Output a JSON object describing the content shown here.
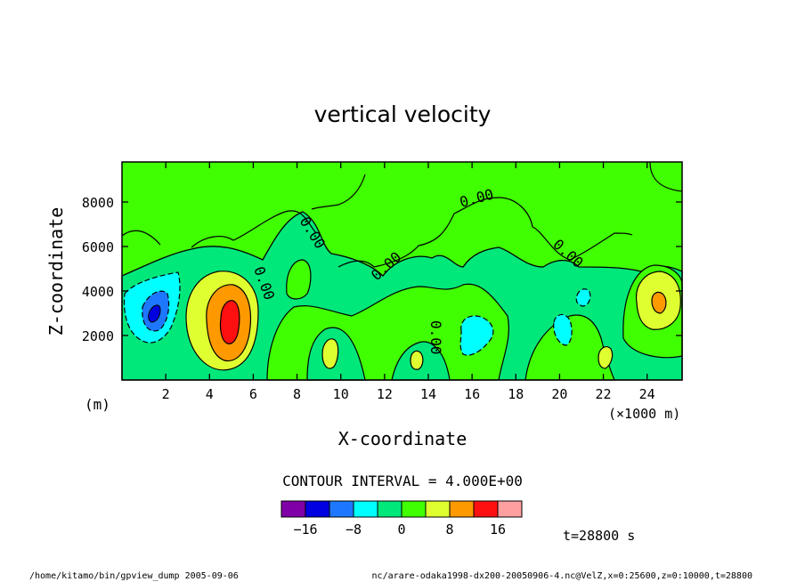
{
  "chart_data": {
    "type": "heatmap",
    "title": "vertical velocity",
    "xlabel": "X-coordinate",
    "ylabel": "Z-coordinate",
    "x_unit": "(×1000 m)",
    "y_unit": "(m)",
    "xlim": [
      0,
      25.6
    ],
    "ylim": [
      0,
      9800
    ],
    "x_ticks": [
      "2",
      "4",
      "6",
      "8",
      "10",
      "12",
      "14",
      "16",
      "18",
      "20",
      "22",
      "24"
    ],
    "x_tick_values": [
      2,
      4,
      6,
      8,
      10,
      12,
      14,
      16,
      18,
      20,
      22,
      24
    ],
    "y_ticks": [
      "2000",
      "4000",
      "6000",
      "8000"
    ],
    "y_tick_values": [
      2000,
      4000,
      6000,
      8000
    ],
    "contour_interval_text": "CONTOUR INTERVAL = 4.000E+00",
    "contour_label": "0.00",
    "colorbar": {
      "levels": [
        -20,
        -16,
        -12,
        -8,
        -4,
        0,
        4,
        8,
        12,
        16,
        20
      ],
      "tick_labels": [
        "−16",
        "−8",
        "0",
        "8",
        "16"
      ],
      "tick_values": [
        -16,
        -8,
        0,
        8,
        16
      ],
      "colors": [
        "#7f00a6",
        "#0000e0",
        "#1e78ff",
        "#00ffff",
        "#00e87a",
        "#40ff00",
        "#e0ff30",
        "#ff9900",
        "#ff1010",
        "#ff9f9f"
      ]
    },
    "features": [
      {
        "x": 1.5,
        "z": 3200,
        "value": -14
      },
      {
        "x": 5.0,
        "z": 2900,
        "value": 14
      },
      {
        "x": 10.0,
        "z": 1200,
        "value": 6
      },
      {
        "x": 13.6,
        "z": 900,
        "value": 5
      },
      {
        "x": 15.9,
        "z": 1800,
        "value": -6
      },
      {
        "x": 20.0,
        "z": 2300,
        "value": -5
      },
      {
        "x": 21.0,
        "z": 3800,
        "value": -5
      },
      {
        "x": 22.0,
        "z": 1000,
        "value": 5
      },
      {
        "x": 24.4,
        "z": 3500,
        "value": 11
      }
    ]
  },
  "time_label": "t=28800 s",
  "footer_left": "/home/kitamo/bin/gpview_dump  2005-09-06",
  "footer_right": "nc/arare-odaka1998-dx200-20050906-4.nc@VelZ,x=0:25600,z=0:10000,t=28800"
}
